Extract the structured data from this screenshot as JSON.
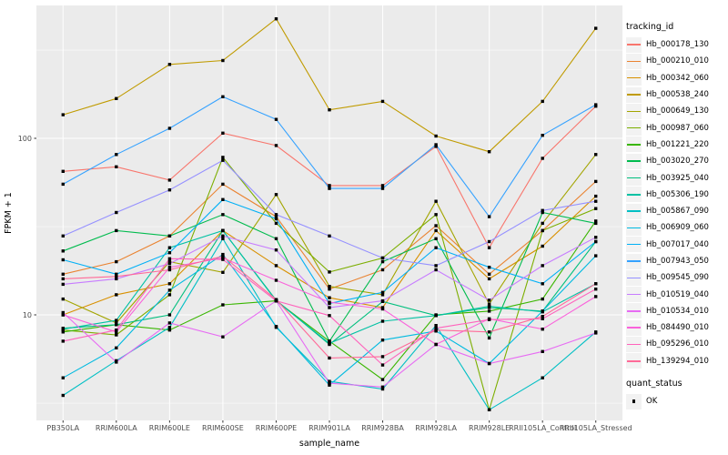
{
  "chart_data": {
    "type": "line",
    "title": "",
    "xlabel": "sample_name",
    "ylabel": "FPKM + 1",
    "y_scale": "log10",
    "y_ticks": [
      10,
      100
    ],
    "y_minor_ticks": [
      3.16,
      31.6,
      316
    ],
    "ylim": [
      2.5,
      570
    ],
    "grid": true,
    "panel_bg": "#EBEBEB",
    "grid_color": "#FFFFFF",
    "point_color": "#000000",
    "categories": [
      "PB350LA",
      "RRIM600LA",
      "RRIM600LE",
      "RRIM600SE",
      "RRIM600PE",
      "RRIM901LA",
      "RRIM928BA",
      "RRIM928LA",
      "RRIM928LE",
      "RRII105LA_Control",
      "RRII105LA_Stressed"
    ],
    "series": [
      {
        "name": "Hb_000178_130",
        "color": "#F8766D",
        "values": [
          65,
          69,
          58,
          107,
          91,
          54,
          54,
          90,
          24,
          77,
          152
        ]
      },
      {
        "name": "Hb_000210_010",
        "color": "#EA8331",
        "values": [
          17,
          20,
          28,
          55,
          36,
          14,
          18,
          32,
          17,
          30,
          57
        ]
      },
      {
        "name": "Hb_000342_060",
        "color": "#D89000",
        "values": [
          10,
          13,
          15,
          30,
          19,
          12.5,
          11,
          30,
          16,
          24.5,
          47
        ]
      },
      {
        "name": "Hb_000538_240",
        "color": "#C09B00",
        "values": [
          136,
          168,
          262,
          276,
          475,
          145,
          162,
          103,
          84,
          162,
          420
        ]
      },
      {
        "name": "Hb_000649_130",
        "color": "#A3A500",
        "values": [
          12.3,
          9,
          20,
          17.4,
          48,
          14.5,
          13,
          44,
          11.5,
          33,
          81
        ]
      },
      {
        "name": "Hb_000987_060",
        "color": "#7CAE00",
        "values": [
          8.2,
          7.7,
          13,
          78,
          33,
          17.5,
          21,
          37,
          2.9,
          30,
          40
        ]
      },
      {
        "name": "Hb_001221_220",
        "color": "#39B600",
        "values": [
          8,
          8.8,
          8.2,
          11.4,
          12,
          7.1,
          4.3,
          10,
          10.5,
          12.3,
          34
        ]
      },
      {
        "name": "Hb_003020_270",
        "color": "#00BB4E",
        "values": [
          23,
          30,
          28,
          37,
          27,
          7.1,
          20,
          27,
          7.4,
          38,
          33
        ]
      },
      {
        "name": "Hb_003925_040",
        "color": "#00BF7D",
        "values": [
          8.4,
          8.8,
          10,
          30,
          12.1,
          6.8,
          11.9,
          9.9,
          11,
          10.5,
          26
        ]
      },
      {
        "name": "Hb_005306_190",
        "color": "#00C1A3",
        "values": [
          8.3,
          9.3,
          24,
          30,
          12,
          6.9,
          9.2,
          9.9,
          11.2,
          10.4,
          15
        ]
      },
      {
        "name": "Hb_005867_090",
        "color": "#00BFC4",
        "values": [
          3.5,
          5.5,
          8.5,
          27,
          8.5,
          4.2,
          3.8,
          8.7,
          2.9,
          4.4,
          8
        ]
      },
      {
        "name": "Hb_006909_060",
        "color": "#00BAE0",
        "values": [
          4.4,
          6.5,
          13.8,
          22,
          8.6,
          4,
          7.2,
          8.1,
          5.3,
          10.5,
          21.6
        ]
      },
      {
        "name": "Hb_007017_040",
        "color": "#00B0F6",
        "values": [
          20.5,
          17,
          22.5,
          45,
          35,
          11.6,
          13.4,
          24,
          18.6,
          15,
          26
        ]
      },
      {
        "name": "Hb_007943_050",
        "color": "#35A2FF",
        "values": [
          55,
          81,
          114,
          172,
          128,
          52,
          52,
          92,
          36,
          104,
          155
        ]
      },
      {
        "name": "Hb_009545_090",
        "color": "#9590FF",
        "values": [
          28,
          38,
          51,
          75,
          37,
          28,
          21,
          19,
          26,
          39,
          44
        ]
      },
      {
        "name": "Hb_010519_040",
        "color": "#C77CFF",
        "values": [
          14.9,
          16,
          19.5,
          28,
          23.3,
          11,
          12,
          18,
          12.1,
          19,
          27.5
        ]
      },
      {
        "name": "Hb_010534_010",
        "color": "#E76BF3",
        "values": [
          10.3,
          5.4,
          9,
          7.5,
          12,
          4.1,
          3.9,
          6.8,
          5.3,
          6.2,
          7.9
        ]
      },
      {
        "name": "Hb_084490_010",
        "color": "#FA62DB",
        "values": [
          10,
          8,
          18.6,
          21,
          15.7,
          11.8,
          10.8,
          6.8,
          9.5,
          8.3,
          12.7
        ]
      },
      {
        "name": "Hb_095296_010",
        "color": "#FF62BC",
        "values": [
          7.1,
          8.2,
          20.8,
          20.6,
          12,
          9.9,
          5.2,
          8.4,
          9.4,
          9.5,
          14
        ]
      },
      {
        "name": "Hb_139294_010",
        "color": "#FF6A98",
        "values": [
          16,
          16.5,
          18,
          21.5,
          12.2,
          5.7,
          5.8,
          8.2,
          8,
          9.8,
          15
        ]
      }
    ],
    "legend": {
      "color_title": "tracking_id",
      "shape_title": "quant_status",
      "shape_items": [
        {
          "label": "OK"
        }
      ]
    }
  }
}
